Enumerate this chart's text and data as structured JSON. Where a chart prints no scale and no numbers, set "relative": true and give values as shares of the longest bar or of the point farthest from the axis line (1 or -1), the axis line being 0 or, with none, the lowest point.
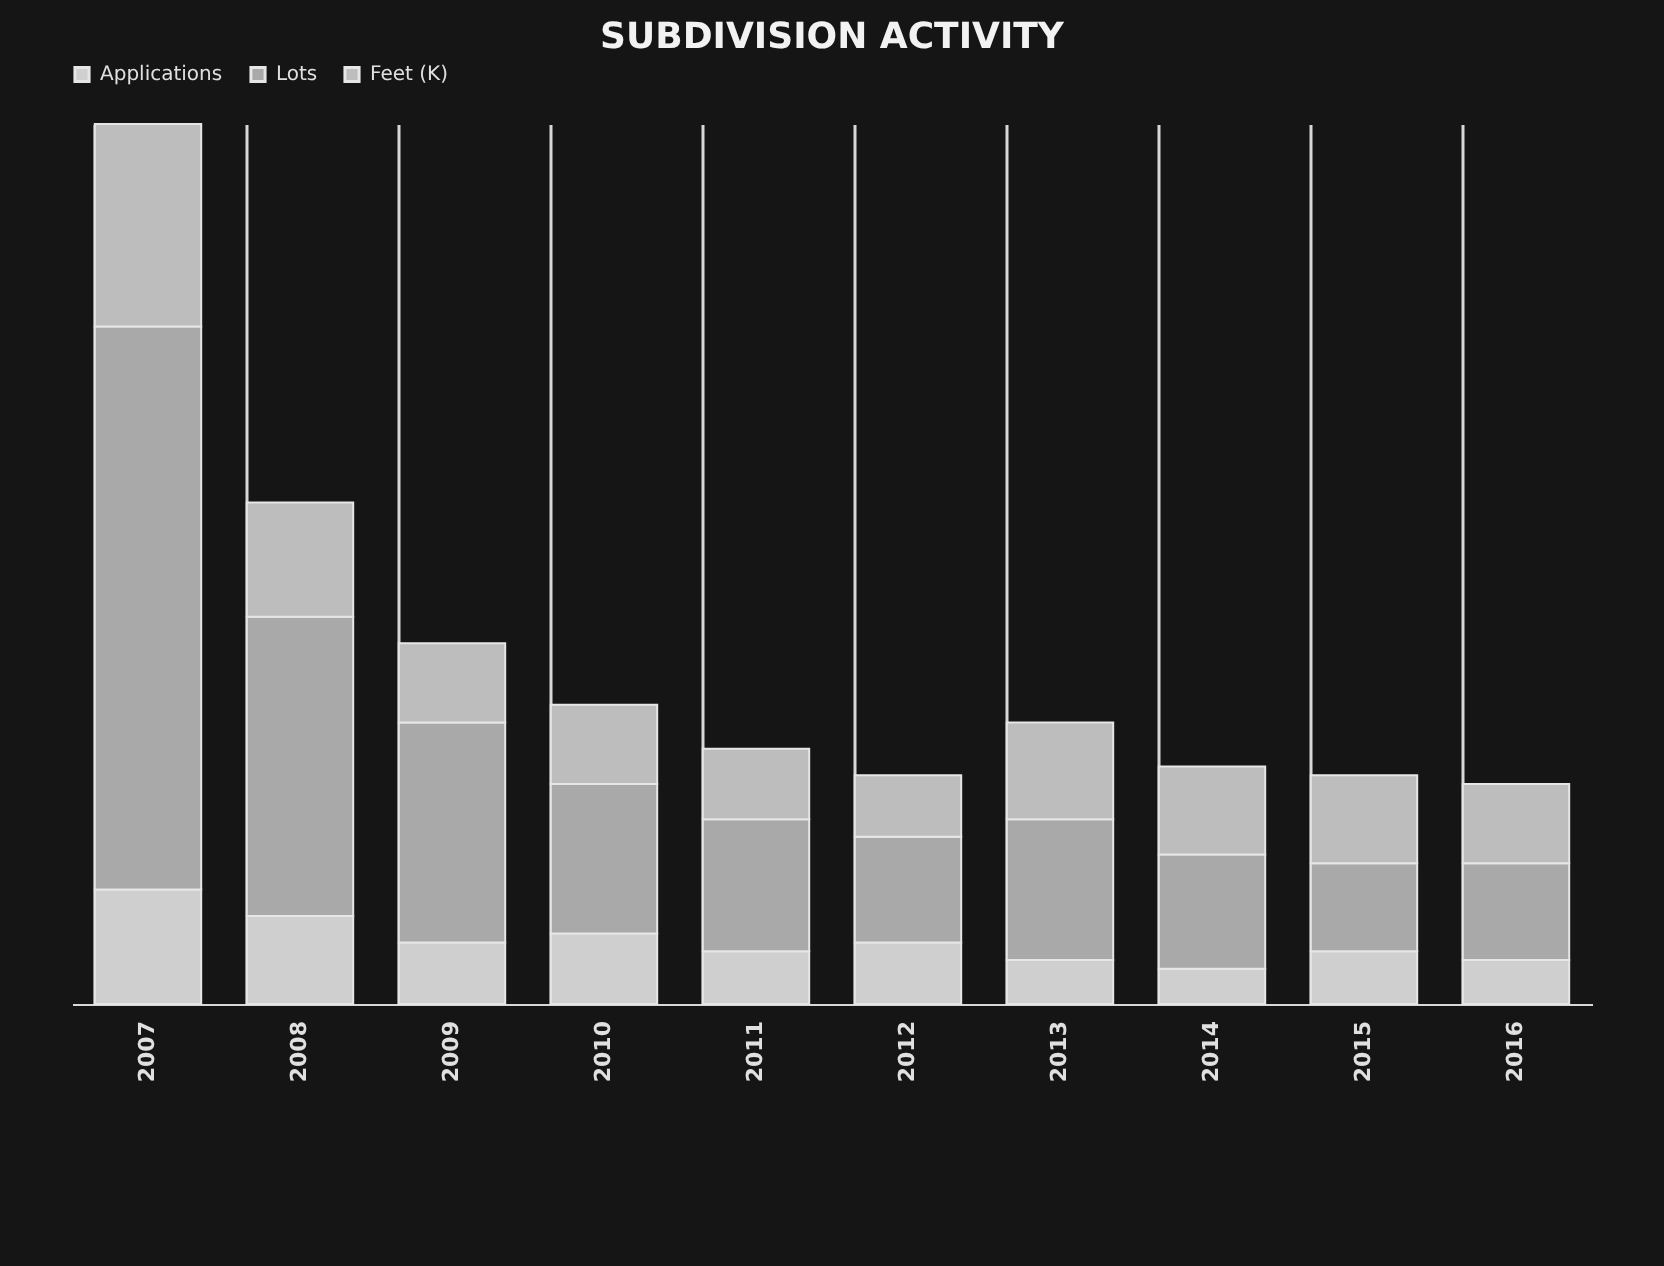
{
  "chart_data": {
    "type": "bar",
    "title": "SUBDIVISION ACTIVITY",
    "stacked": true,
    "relative": true,
    "grid": "x",
    "legend": "top",
    "categories": [
      "2007",
      "2008",
      "2009",
      "2010",
      "2011",
      "2012",
      "2013",
      "2014",
      "2015",
      "2016"
    ],
    "series": [
      {
        "name": "Applications",
        "color": "#cfcfcf",
        "values": [
          0.13,
          0.1,
          0.07,
          0.08,
          0.06,
          0.07,
          0.05,
          0.04,
          0.06,
          0.05
        ]
      },
      {
        "name": "Lots",
        "color": "#a9a9a9",
        "values": [
          0.64,
          0.34,
          0.25,
          0.17,
          0.15,
          0.12,
          0.16,
          0.13,
          0.1,
          0.11
        ]
      },
      {
        "name": "Feet (K)",
        "color": "#bdbdbd",
        "values": [
          0.23,
          0.13,
          0.09,
          0.09,
          0.08,
          0.07,
          0.11,
          0.1,
          0.1,
          0.09
        ]
      }
    ]
  }
}
